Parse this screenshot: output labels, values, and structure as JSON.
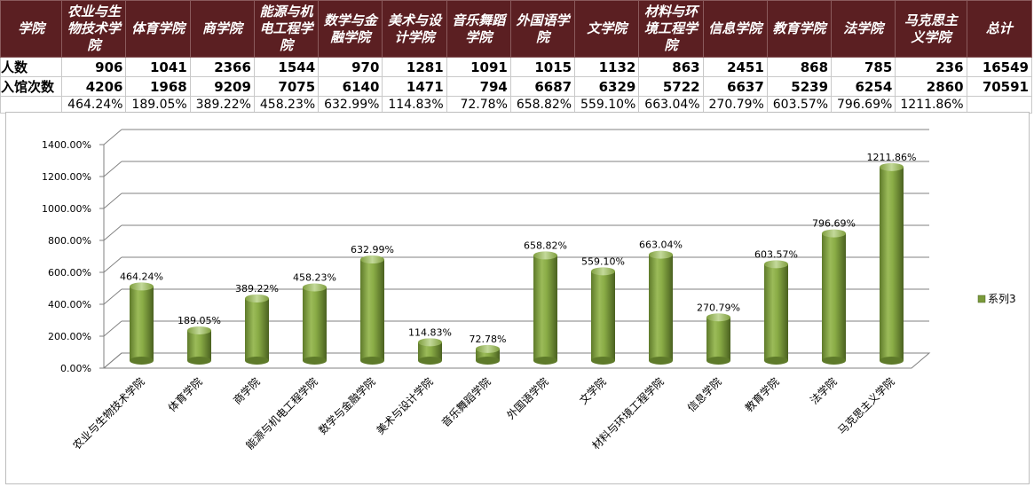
{
  "table": {
    "header": [
      "学院",
      "农业与生物技术学院",
      "体育学院",
      "商学院",
      "能源与机电工程学院",
      "数学与金融学院",
      "美术与设计学院",
      "音乐舞蹈学院",
      "外国语学院",
      "文学院",
      "材料与环境工程学院",
      "信息学院",
      "教育学院",
      "法学院",
      "马克思主义学院",
      "总计"
    ],
    "rows": [
      {
        "label": "人数",
        "values": [
          "906",
          "1041",
          "2366",
          "1544",
          "970",
          "1281",
          "1091",
          "1015",
          "1132",
          "863",
          "2451",
          "868",
          "785",
          "236",
          "16549"
        ]
      },
      {
        "label": "入馆次数",
        "values": [
          "4206",
          "1968",
          "9209",
          "7075",
          "6140",
          "1471",
          "794",
          "6687",
          "6329",
          "5722",
          "6637",
          "5239",
          "6254",
          "2860",
          "70591"
        ]
      },
      {
        "label": "",
        "values": [
          "464.24%",
          "189.05%",
          "389.22%",
          "458.23%",
          "632.99%",
          "114.83%",
          "72.78%",
          "658.82%",
          "559.10%",
          "663.04%",
          "270.79%",
          "603.57%",
          "796.69%",
          "1211.86%",
          ""
        ]
      }
    ]
  },
  "colors": {
    "header_bg": "#5b1f22",
    "bar_light": "#9bbb59",
    "bar_dark": "#4f6228"
  },
  "chart_data": {
    "type": "bar",
    "categories": [
      "农业与生物技术学院",
      "体育学院",
      "商学院",
      "能源与机电工程学院",
      "数学与金融学院",
      "美术与设计学院",
      "音乐舞蹈学院",
      "外国语学院",
      "文学院",
      "材料与环境工程学院",
      "信息学院",
      "教育学院",
      "法学院",
      "马克思主义学院"
    ],
    "series": [
      {
        "name": "系列3",
        "values": [
          464.24,
          189.05,
          389.22,
          458.23,
          632.99,
          114.83,
          72.78,
          658.82,
          559.1,
          663.04,
          270.79,
          603.57,
          796.69,
          1211.86
        ]
      }
    ],
    "data_labels": [
      "464.24%",
      "189.05%",
      "389.22%",
      "458.23%",
      "632.99%",
      "114.83%",
      "72.78%",
      "658.82%",
      "559.10%",
      "663.04%",
      "270.79%",
      "603.57%",
      "796.69%",
      "1211.86%"
    ],
    "y_ticks": [
      "0.00%",
      "200.00%",
      "400.00%",
      "600.00%",
      "800.00%",
      "1000.00%",
      "1200.00%",
      "1400.00%"
    ],
    "ylim": [
      0,
      1400
    ],
    "grid": true,
    "legend": "right",
    "style": "3d-cylinder"
  }
}
